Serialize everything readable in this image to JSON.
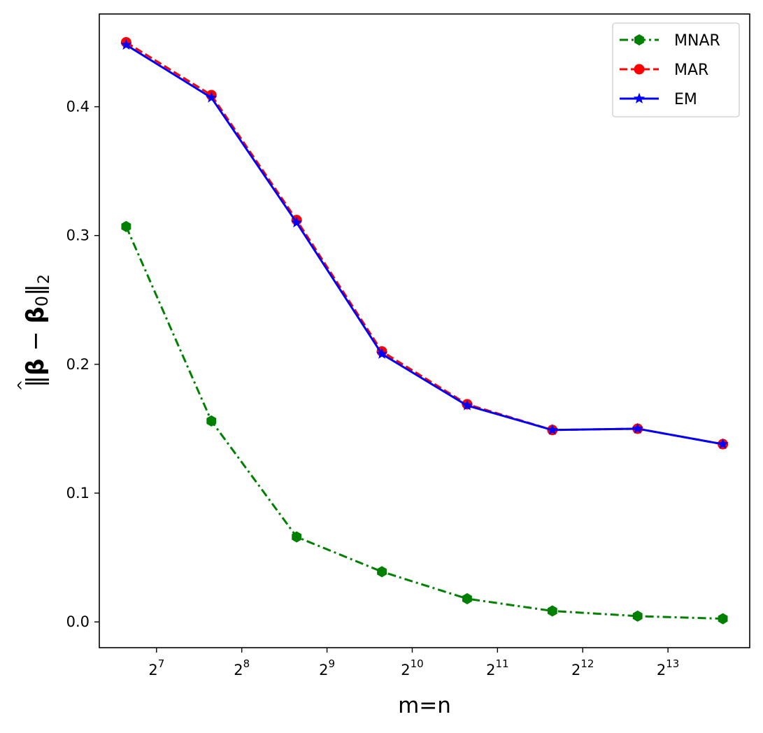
{
  "chart_data": {
    "type": "line",
    "xlabel": "m=n",
    "ylabel_parts": {
      "norm_open": "‖",
      "beta": "β",
      "minus": " − ",
      "beta0": "β",
      "sub0": "0",
      "norm_close": "‖",
      "sub2": "2",
      "hat": "^"
    },
    "x_scale": "log2",
    "x": [
      100,
      200,
      400,
      800,
      1600,
      3200,
      6400,
      12800
    ],
    "xticks": [
      128,
      256,
      512,
      1024,
      2048,
      4096,
      8192
    ],
    "xtick_labels": [
      {
        "base": "2",
        "exp": "7"
      },
      {
        "base": "2",
        "exp": "8"
      },
      {
        "base": "2",
        "exp": "9"
      },
      {
        "base": "2",
        "exp": "10"
      },
      {
        "base": "2",
        "exp": "11"
      },
      {
        "base": "2",
        "exp": "12"
      },
      {
        "base": "2",
        "exp": "13"
      }
    ],
    "ylim": [
      -0.02,
      0.472
    ],
    "yticks": [
      0.0,
      0.1,
      0.2,
      0.3,
      0.4
    ],
    "ytick_labels": [
      "0.0",
      "0.1",
      "0.2",
      "0.3",
      "0.4"
    ],
    "legend_position": "top-right",
    "grid": false,
    "series": [
      {
        "name": "MNAR",
        "color": "#008000",
        "dash": "dashdot",
        "marker": "hexagon",
        "values": [
          0.307,
          0.156,
          0.066,
          0.039,
          0.018,
          0.0085,
          0.0045,
          0.0025
        ]
      },
      {
        "name": "MAR",
        "color": "#ff0000",
        "dash": "dashed",
        "marker": "circle",
        "values": [
          0.45,
          0.409,
          0.312,
          0.21,
          0.169,
          0.149,
          0.15,
          0.138
        ]
      },
      {
        "name": "EM",
        "color": "#0000ff",
        "dash": "solid",
        "marker": "star",
        "values": [
          0.448,
          0.407,
          0.31,
          0.208,
          0.168,
          0.149,
          0.15,
          0.138
        ]
      }
    ]
  }
}
